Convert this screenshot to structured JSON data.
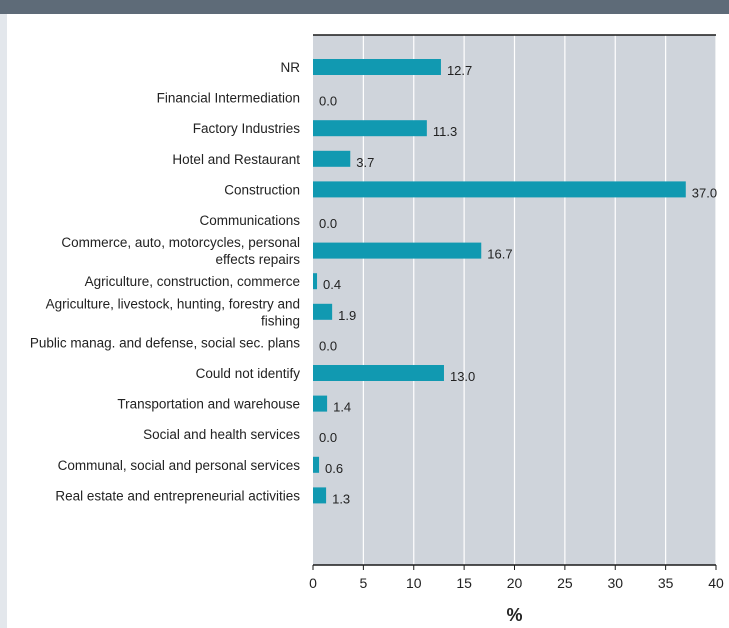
{
  "chart_data": {
    "type": "bar",
    "orientation": "horizontal",
    "title": "",
    "xlabel": "%",
    "ylabel": "",
    "xlim": [
      0,
      40
    ],
    "xticks": [
      "0",
      "5",
      "10",
      "15",
      "20",
      "25",
      "30",
      "35",
      "40"
    ],
    "grid": true,
    "bar_color": "#1199b1",
    "plot_background": "#cfd4db",
    "categories": [
      "NR",
      "Financial Intermediation",
      "Factory Industries",
      "Hotel and Restaurant",
      "Construction",
      "Communications",
      "Commerce, auto, motorcycles, personal effects repairs",
      "Agriculture, construction, commerce",
      "Agriculture, livestock, hunting, forestry and fishing",
      "Public manag. and defense, social sec. plans",
      "Could not identify",
      "Transportation and warehouse",
      "Social and health services",
      "Communal, social and personal services",
      "Real estate and entrepreneurial activities"
    ],
    "category_label_lines": [
      [
        "NR"
      ],
      [
        "Financial Intermediation"
      ],
      [
        "Factory Industries"
      ],
      [
        "Hotel and Restaurant"
      ],
      [
        "Construction"
      ],
      [
        "Communications"
      ],
      [
        "Commerce, auto, motorcycles, personal",
        "effects repairs"
      ],
      [
        "Agriculture, construction, commerce"
      ],
      [
        "Agriculture, livestock, hunting, forestry and",
        "fishing"
      ],
      [
        "Public manag. and defense, social sec. plans"
      ],
      [
        "Could not identify"
      ],
      [
        "Transportation and warehouse"
      ],
      [
        "Social and health services"
      ],
      [
        "Communal, social and personal services"
      ],
      [
        "Real estate and entrepreneurial activities"
      ]
    ],
    "values": [
      12.7,
      0.0,
      11.3,
      3.7,
      37.0,
      0.0,
      16.7,
      0.4,
      1.9,
      0.0,
      13.0,
      1.4,
      0.0,
      0.6,
      1.3
    ],
    "value_labels": [
      "12.7",
      "0.0",
      "11.3",
      "3.7",
      "37.0",
      "0.0",
      "16.7",
      "0.4",
      "1.9",
      "0.0",
      "13.0",
      "1.4",
      "0.0",
      "0.6",
      "1.3"
    ]
  }
}
